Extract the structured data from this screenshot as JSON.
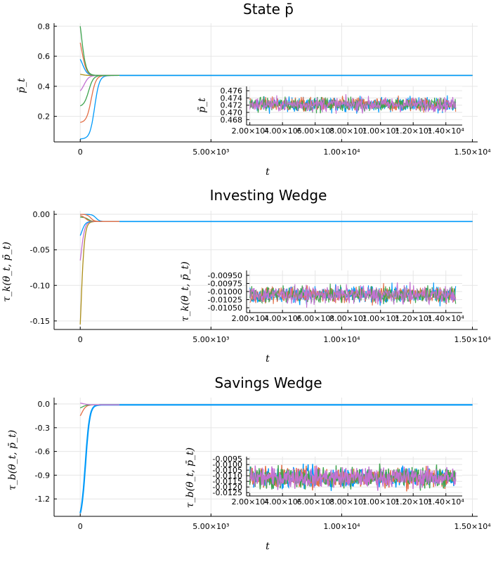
{
  "colors": [
    "#009AFA",
    "#E36F47",
    "#3EA44E",
    "#C371D2",
    "#AC8E18"
  ],
  "chart_data": [
    {
      "type": "line",
      "title": "State p̄",
      "xlabel": "t",
      "ylabel": "p̄_t",
      "xlim": [
        -1000,
        15200
      ],
      "ylim": [
        0.03,
        0.82
      ],
      "xticks": [
        0,
        5000,
        10000,
        15000
      ],
      "xtick_labels": [
        "0",
        "5.00×10³",
        "1.00×10⁴",
        "1.50×10⁴"
      ],
      "yticks": [
        0.2,
        0.4,
        0.6,
        0.8
      ],
      "ytick_labels": [
        "0.2",
        "0.4",
        "0.6",
        "0.8"
      ],
      "steady_value": 0.472,
      "series_start_values": [
        0.05,
        0.16,
        0.27,
        0.37,
        0.48,
        0.58,
        0.69,
        0.8
      ],
      "inset": {
        "ylabel": "p̄_t",
        "xlim": [
          1800,
          15000
        ],
        "ylim": [
          0.4665,
          0.4772
        ],
        "xticks": [
          2000,
          4000,
          6000,
          8000,
          10000,
          12000,
          14000
        ],
        "xtick_labels": [
          "2.00×10³",
          "4.00×10³",
          "6.00×10³",
          "8.00×10³",
          "1.00×10⁴",
          "1.20×10⁴",
          "1.40×10⁴"
        ],
        "yticks": [
          0.468,
          0.47,
          0.472,
          0.474,
          0.476
        ],
        "ytick_labels": [
          "0.468",
          "0.470",
          "0.472",
          "0.474",
          "0.476"
        ],
        "center": 0.4722,
        "amplitude": 0.0028
      }
    },
    {
      "type": "line",
      "title": "Investing Wedge",
      "xlabel": "t",
      "ylabel": "τ_k(θ_t, p̄_t)",
      "xlim": [
        -1000,
        15200
      ],
      "ylim": [
        -0.162,
        0.005
      ],
      "xticks": [
        0,
        5000,
        10000,
        15000
      ],
      "xtick_labels": [
        "0",
        "5.00×10³",
        "1.00×10⁴",
        "1.50×10⁴"
      ],
      "yticks": [
        0.0,
        -0.05,
        -0.1,
        -0.15
      ],
      "ytick_labels": [
        "0.00",
        "-0.05",
        "-0.10",
        "-0.15"
      ],
      "steady_value": -0.0101,
      "inset": {
        "ylabel": "τ_k(θ_t, p̄_t)",
        "xlim": [
          1800,
          15000
        ],
        "ylim": [
          -0.01065,
          -0.00935
        ],
        "xticks": [
          2000,
          4000,
          6000,
          8000,
          10000,
          12000,
          14000
        ],
        "xtick_labels": [
          "2.00×10³",
          "4.00×10³",
          "6.00×10³",
          "8.00×10³",
          "1.00×10⁴",
          "1.20×10⁴",
          "1.40×10⁴"
        ],
        "yticks": [
          -0.0095,
          -0.00975,
          -0.01,
          -0.01025,
          -0.0105
        ],
        "ytick_labels": [
          "-0.00950",
          "-0.00975",
          "-0.01000",
          "-0.01025",
          "-0.01050"
        ],
        "center": -0.0101,
        "amplitude": 0.00038
      }
    },
    {
      "type": "line",
      "title": "Savings Wedge",
      "xlabel": "t",
      "ylabel": "τ_b(θ_t, p̄_t)",
      "xlim": [
        -1000,
        15200
      ],
      "ylim": [
        -1.42,
        0.08
      ],
      "xticks": [
        0,
        5000,
        10000,
        15000
      ],
      "xtick_labels": [
        "0",
        "5.00×10³",
        "1.00×10⁴",
        "1.50×10⁴"
      ],
      "yticks": [
        0.0,
        -0.3,
        -0.6,
        -0.9,
        -1.2
      ],
      "ytick_labels": [
        "0.0",
        "-0.3",
        "-0.6",
        "-0.9",
        "-1.2"
      ],
      "steady_value": -0.011,
      "inset": {
        "ylabel": "τ_b(θ_t, p̄_t)",
        "xlim": [
          1800,
          15000
        ],
        "ylim": [
          -0.0128,
          -0.0093
        ],
        "xticks": [
          2000,
          4000,
          6000,
          8000,
          10000,
          12000,
          14000
        ],
        "xtick_labels": [
          "2.00×10³",
          "4.00×10³",
          "6.00×10³",
          "8.00×10³",
          "1.00×10⁴",
          "1.20×10⁴",
          "1.40×10⁴"
        ],
        "yticks": [
          -0.0095,
          -0.01,
          -0.0105,
          -0.011,
          -0.0115,
          -0.012,
          -0.0125
        ],
        "ytick_labels": [
          "-0.0095",
          "-0.0100",
          "-0.0105",
          "-0.0110",
          "-0.0115",
          "-0.0120",
          "-0.0125"
        ],
        "center": -0.01115,
        "amplitude": 0.0013
      }
    }
  ]
}
